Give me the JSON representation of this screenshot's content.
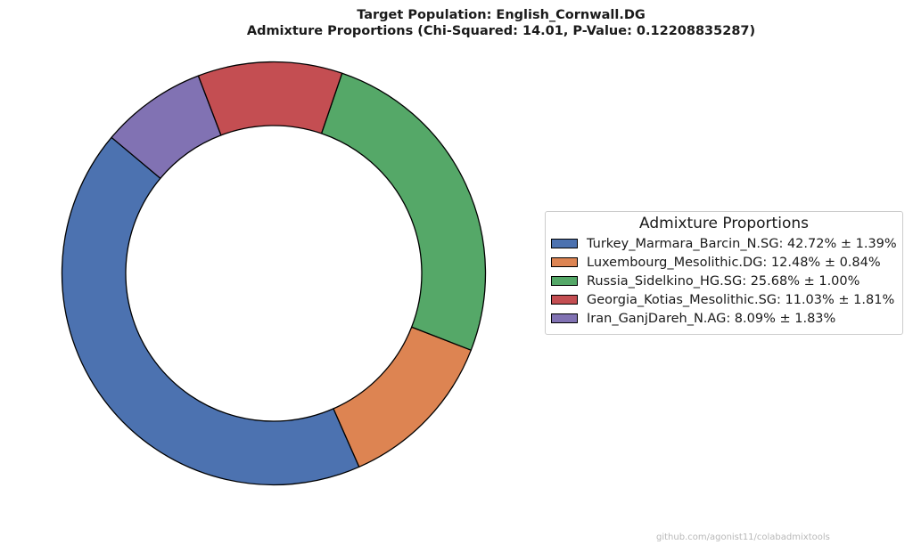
{
  "chart_data": {
    "type": "pie",
    "style": "donut",
    "title": "Target Population: English_Cornwall.DG",
    "subtitle": "Admixture Proportions (Chi-Squared: 14.01, P-Value: 0.12208835287)",
    "legend_title": "Admixture Proportions",
    "legend_position": "right",
    "slices": [
      {
        "label": "Turkey_Marmara_Barcin_N.SG: 42.72% ± 1.39%",
        "value": 42.72,
        "error": 1.39,
        "color": "#4c72b0"
      },
      {
        "label": "Luxembourg_Mesolithic.DG: 12.48% ± 0.84%",
        "value": 12.48,
        "error": 0.84,
        "color": "#dd8452"
      },
      {
        "label": "Russia_Sidelkino_HG.SG: 25.68% ± 1.00%",
        "value": 25.68,
        "error": 1.0,
        "color": "#55a868"
      },
      {
        "label": "Georgia_Kotias_Mesolithic.SG: 11.03% ± 1.81%",
        "value": 11.03,
        "error": 1.81,
        "color": "#c44e52"
      },
      {
        "label": "Iran_GanjDareh_N.AG: 8.09% ± 1.83%",
        "value": 8.09,
        "error": 1.83,
        "color": "#8172b3"
      }
    ]
  },
  "watermark": "github.com/agonist11/colabadmixtools"
}
